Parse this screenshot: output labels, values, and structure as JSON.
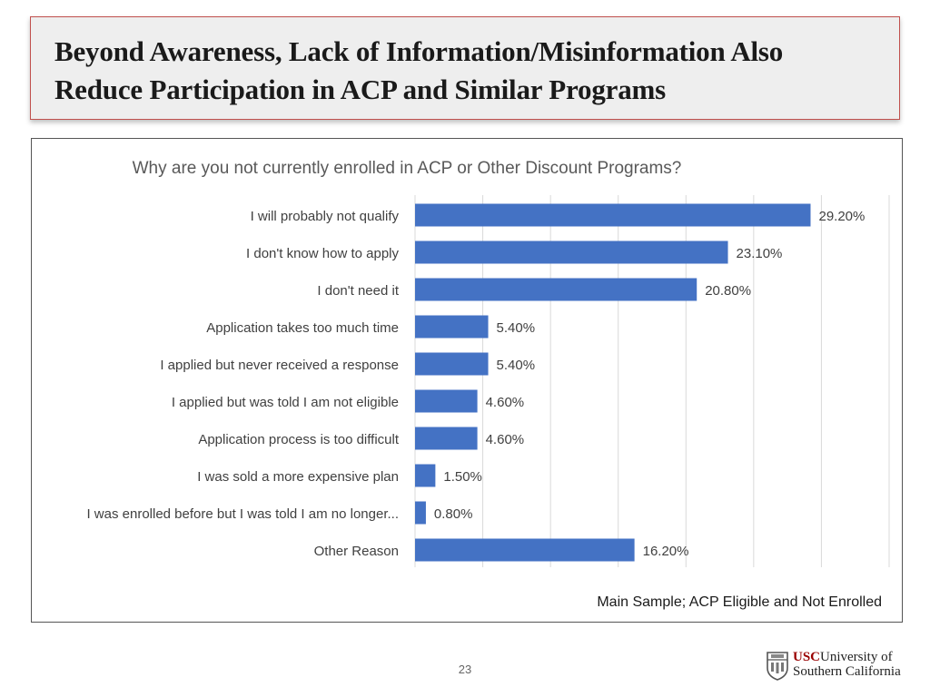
{
  "slide": {
    "title_line1": "Beyond Awareness, Lack of Information/Misinformation Also",
    "title_line2": "Reduce Participation in ACP and Similar Programs",
    "page_number": "23"
  },
  "logo": {
    "usc": "USC",
    "line1_rest": "University of",
    "line2": "Southern California"
  },
  "colors": {
    "bar": "#4472c4",
    "title_border": "#c0504d",
    "usc_red": "#990000"
  },
  "chart_data": {
    "type": "bar",
    "orientation": "horizontal",
    "title": "Why are you not currently enrolled in ACP or Other Discount Programs?",
    "note": "Main Sample; ACP Eligible and Not Enrolled",
    "categories": [
      "I will probably not qualify",
      "I don't know how to apply",
      "I don't need it",
      "Application takes too much time",
      "I applied but never received a response",
      "I applied but was told I am not eligible",
      "Application process is too difficult",
      "I was sold a more expensive plan",
      "I was enrolled before but I was told I am no longer...",
      "Other Reason"
    ],
    "values": [
      29.2,
      23.1,
      20.8,
      5.4,
      5.4,
      4.6,
      4.6,
      1.5,
      0.8,
      16.2
    ],
    "data_labels": [
      "29.20%",
      "23.10%",
      "20.80%",
      "5.40%",
      "5.40%",
      "4.60%",
      "4.60%",
      "1.50%",
      "0.80%",
      "16.20%"
    ],
    "xlim": [
      0,
      35
    ],
    "grid_step": 5,
    "grid": true
  }
}
